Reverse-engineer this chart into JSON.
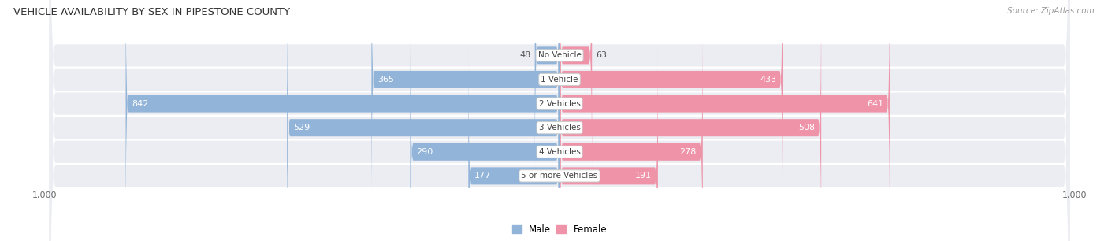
{
  "title": "VEHICLE AVAILABILITY BY SEX IN PIPESTONE COUNTY",
  "source": "Source: ZipAtlas.com",
  "categories": [
    "No Vehicle",
    "1 Vehicle",
    "2 Vehicles",
    "3 Vehicles",
    "4 Vehicles",
    "5 or more Vehicles"
  ],
  "male_values": [
    48,
    365,
    842,
    529,
    290,
    177
  ],
  "female_values": [
    63,
    433,
    641,
    508,
    278,
    191
  ],
  "male_color": "#92B4D8",
  "female_color": "#EE93A8",
  "row_bg_color": "#ECEDF2",
  "row_edge_color": "#D8D9E0",
  "label_color_dark": "#555555",
  "label_color_white": "#FFFFFF",
  "axis_max": 1000,
  "figsize": [
    14.06,
    3.06
  ],
  "dpi": 100,
  "title_fontsize": 9.5,
  "bar_fontsize": 8.0,
  "cat_fontsize": 7.5,
  "source_fontsize": 7.5
}
